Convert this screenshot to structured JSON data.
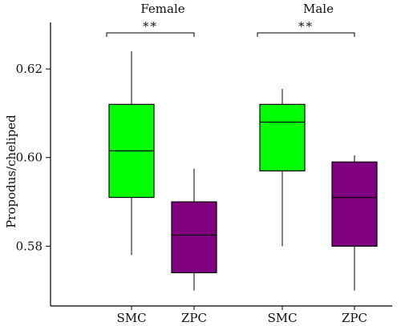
{
  "chart_data": {
    "type": "box",
    "ylabel": "Propodus/cheliped",
    "ylim": [
      0.5665,
      0.6305
    ],
    "yticks": [
      "0.58",
      "0.60",
      "0.62"
    ],
    "ytick_values": [
      0.58,
      0.6,
      0.62
    ],
    "groups": [
      {
        "label": "Female",
        "significance": "**",
        "boxes": [
          {
            "category": "SMC",
            "color": "#00ff00",
            "min": 0.578,
            "q1": 0.591,
            "median": 0.6015,
            "q3": 0.612,
            "max": 0.624
          },
          {
            "category": "ZPC",
            "color": "#800080",
            "min": 0.57,
            "q1": 0.574,
            "median": 0.5825,
            "q3": 0.59,
            "max": 0.5975
          }
        ]
      },
      {
        "label": "Male",
        "significance": "**",
        "boxes": [
          {
            "category": "SMC",
            "color": "#00ff00",
            "min": 0.58,
            "q1": 0.597,
            "median": 0.608,
            "q3": 0.612,
            "max": 0.6155
          },
          {
            "category": "ZPC",
            "color": "#800080",
            "min": 0.57,
            "q1": 0.58,
            "median": 0.591,
            "q3": 0.599,
            "max": 0.6005
          }
        ]
      }
    ]
  }
}
